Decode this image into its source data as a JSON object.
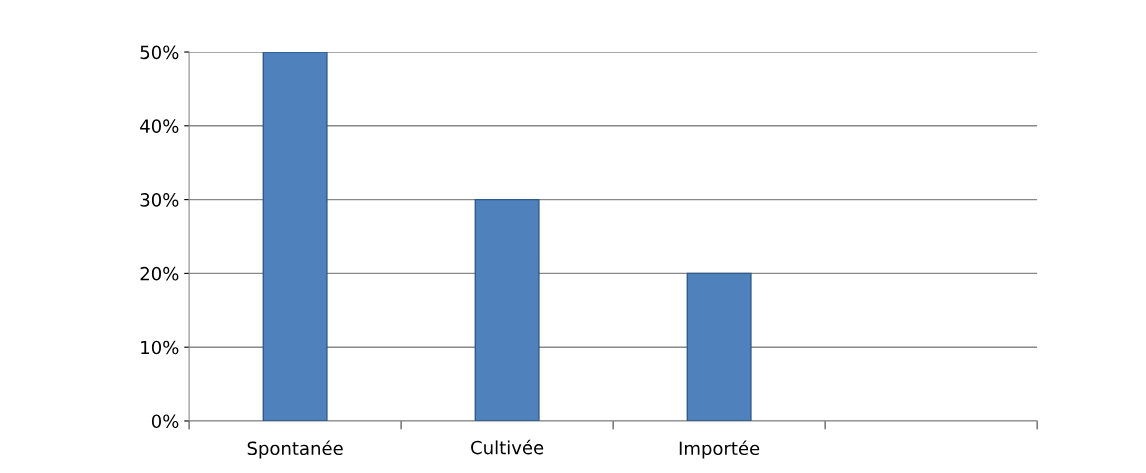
{
  "chart_data": {
    "type": "bar",
    "categories": [
      "Spontanée",
      "Cultivée",
      "Importée",
      null
    ],
    "values": [
      50,
      30,
      20,
      null
    ],
    "color": "#4f81bd",
    "ylim": [
      0,
      50
    ],
    "yticks": [
      {
        "value": 0,
        "label": "0%"
      },
      {
        "value": 10,
        "label": "10%"
      },
      {
        "value": 20,
        "label": "20%"
      },
      {
        "value": 30,
        "label": "30%"
      },
      {
        "value": 40,
        "label": "40%"
      },
      {
        "value": 50,
        "label": "50%"
      }
    ],
    "grid": "y"
  }
}
